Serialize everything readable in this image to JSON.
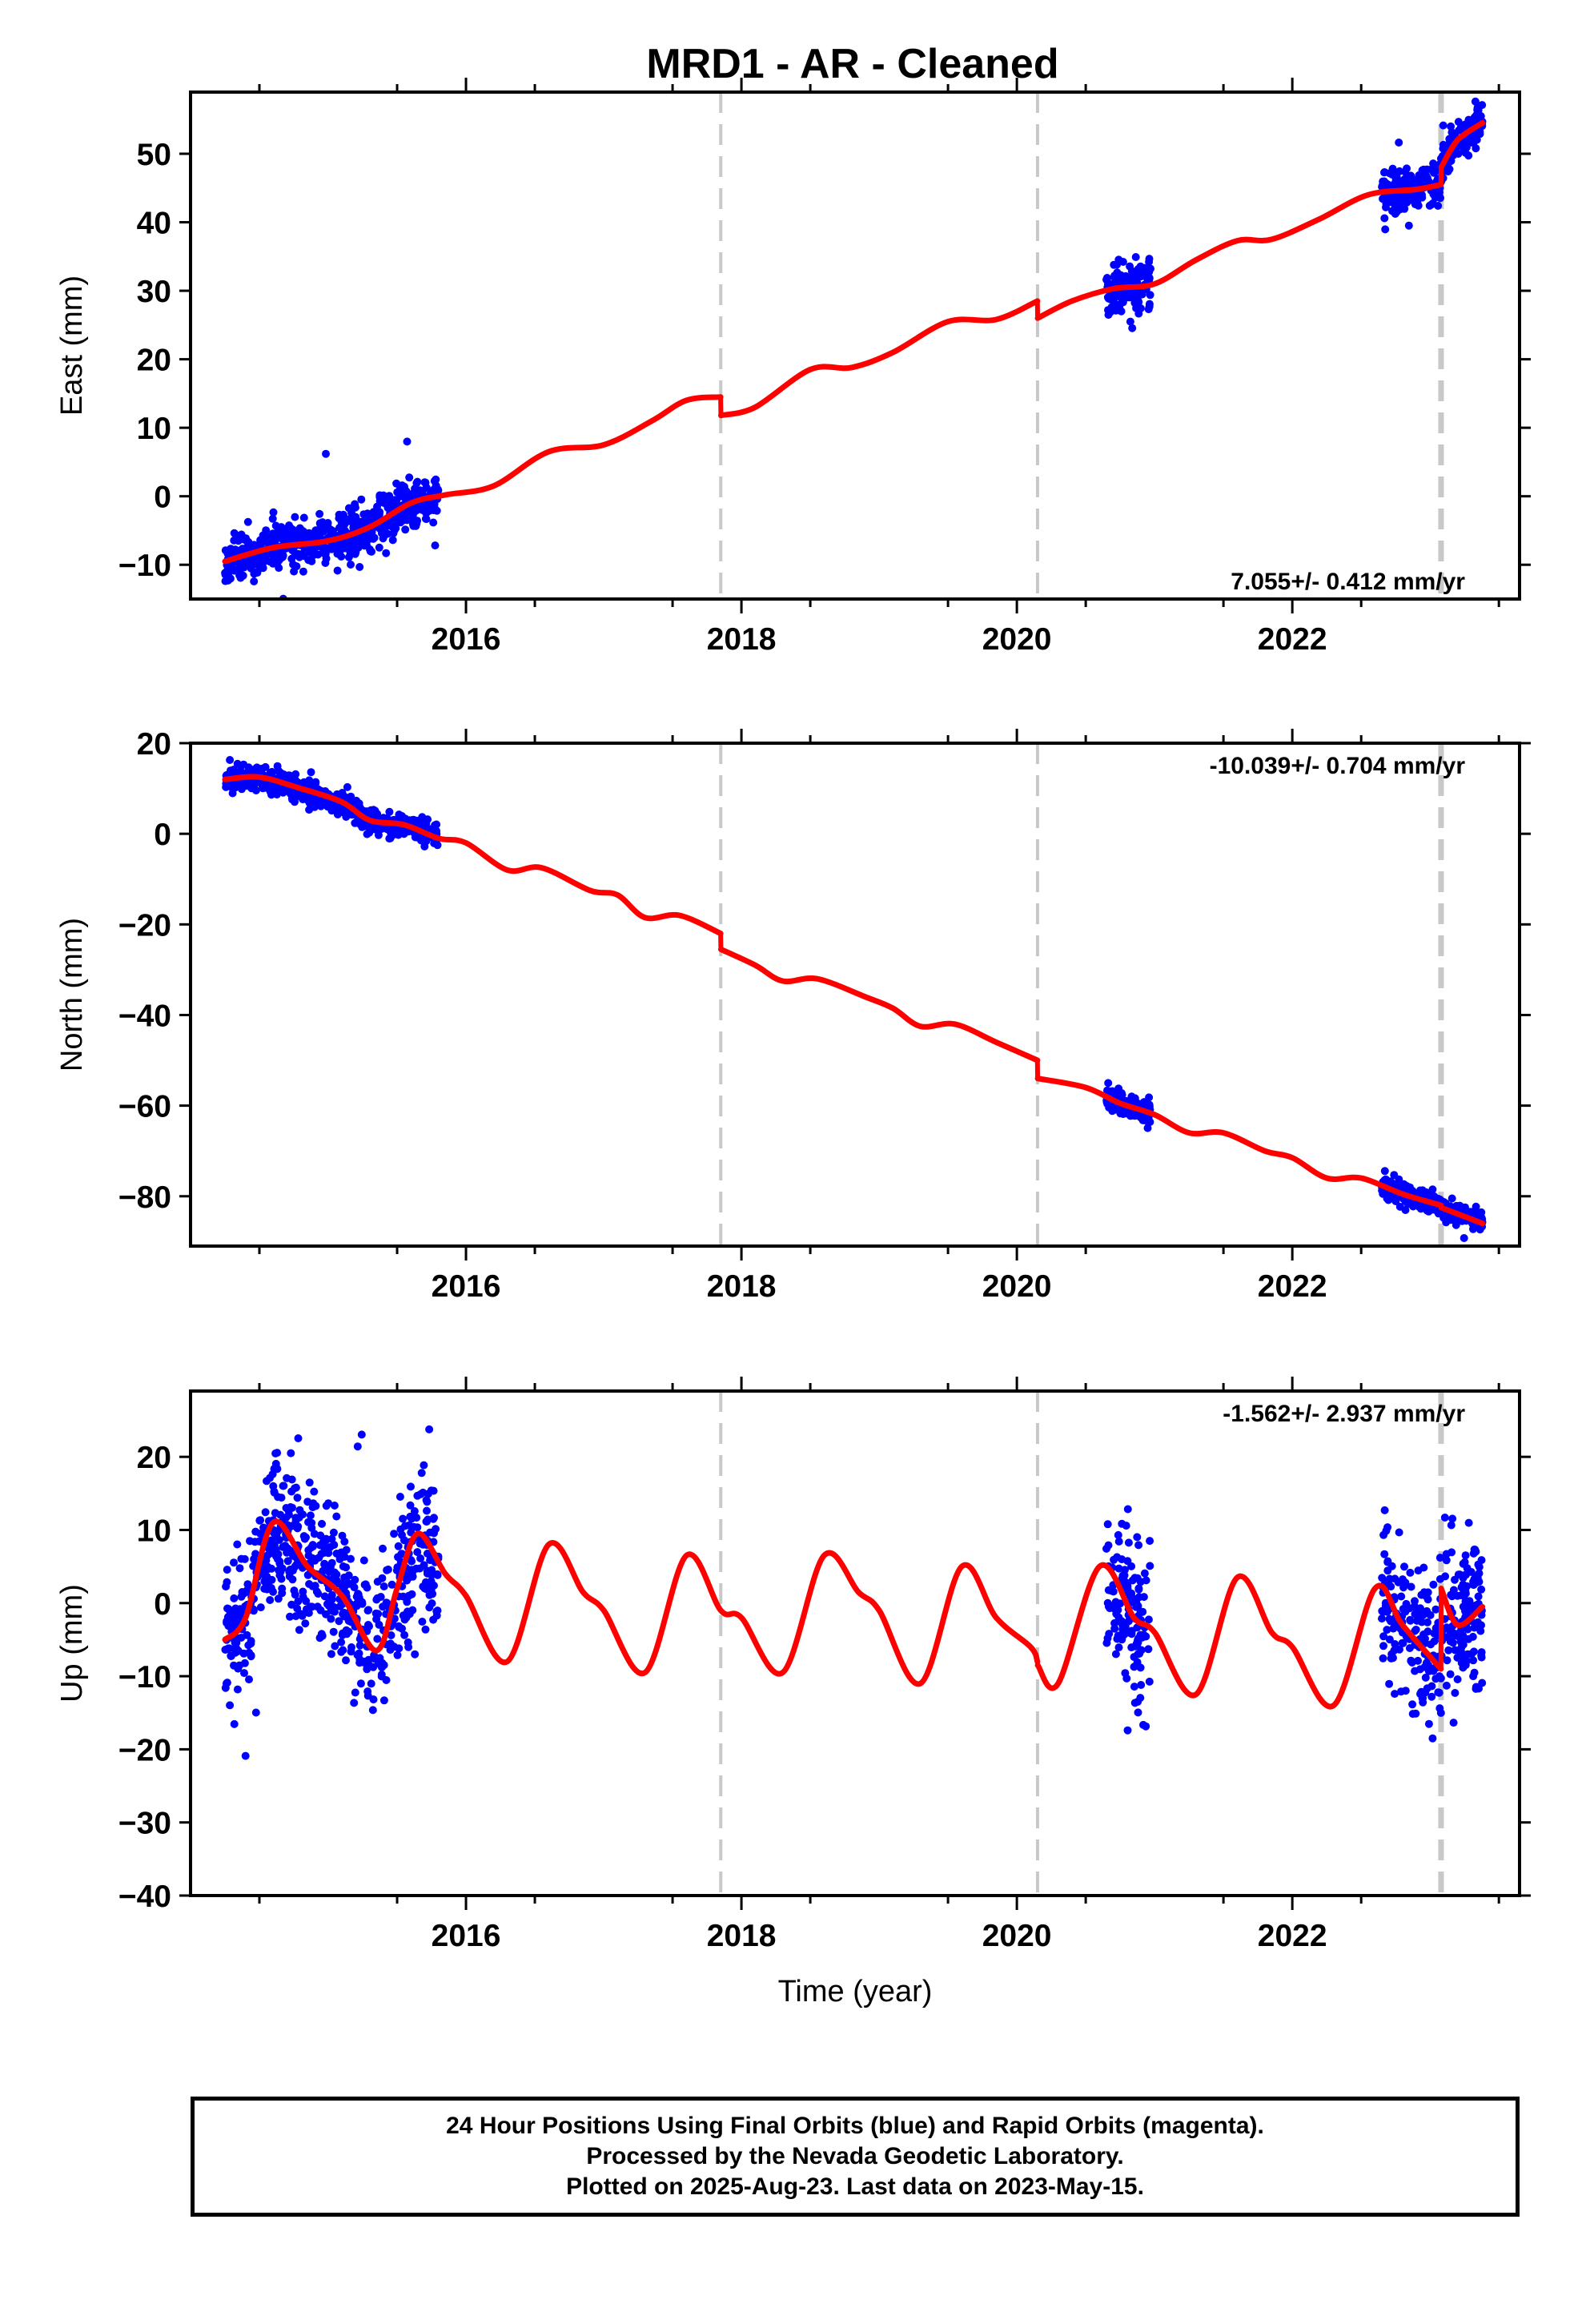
{
  "title": "MRD1  - AR - Cleaned",
  "colors": {
    "points": "#0000ff",
    "model": "#ff0000",
    "breaks": "#c8c8c8",
    "frame": "#000000"
  },
  "footer": {
    "line1": "24 Hour Positions Using Final Orbits (blue) and Rapid Orbits (magenta).",
    "line2": "Processed by the Nevada Geodetic Laboratory.",
    "line3": "Plotted on 2025-Aug-23. Last data on 2023-May-15."
  },
  "chart_data": [
    {
      "type": "scatter",
      "component": "East",
      "ylabel": "East (mm)",
      "xlabel": "",
      "xlim": [
        2014.0,
        2023.65
      ],
      "ylim": [
        -15,
        59
      ],
      "yticks": [
        -10,
        0,
        10,
        20,
        30,
        40,
        50
      ],
      "xticks": [
        2016,
        2018,
        2020,
        2022
      ],
      "rate_text": "7.055+/- 0.412 mm/yr",
      "rate_position": "bottom-right",
      "breaks": [
        2017.85,
        2020.15,
        2023.08
      ],
      "data_segments": [
        {
          "start": 2014.25,
          "end": 2015.8,
          "noise": 1.6
        },
        {
          "start": 2020.65,
          "end": 2020.97,
          "noise": 1.8
        },
        {
          "start": 2022.65,
          "end": 2023.38,
          "noise": 1.6
        }
      ],
      "model": {
        "anchors": [
          [
            2014.25,
            -9.5
          ],
          [
            2014.6,
            -7.5
          ],
          [
            2015.0,
            -6.5
          ],
          [
            2015.3,
            -4.5
          ],
          [
            2015.6,
            -1.0
          ],
          [
            2015.85,
            0.2
          ],
          [
            2016.2,
            1.5
          ],
          [
            2016.6,
            6.5
          ],
          [
            2017.0,
            7.5
          ],
          [
            2017.35,
            11.0
          ],
          [
            2017.6,
            14.0
          ],
          [
            2017.849,
            14.5
          ],
          [
            2017.851,
            11.8
          ],
          [
            2018.1,
            13.0
          ],
          [
            2018.5,
            18.5
          ],
          [
            2018.8,
            18.8
          ],
          [
            2019.1,
            21.0
          ],
          [
            2019.5,
            25.5
          ],
          [
            2019.85,
            25.8
          ],
          [
            2020.149,
            28.5
          ],
          [
            2020.151,
            26.0
          ],
          [
            2020.4,
            28.5
          ],
          [
            2020.7,
            30.3
          ],
          [
            2021.0,
            31.0
          ],
          [
            2021.3,
            34.5
          ],
          [
            2021.6,
            37.3
          ],
          [
            2021.85,
            37.5
          ],
          [
            2022.2,
            40.5
          ],
          [
            2022.55,
            44.0
          ],
          [
            2022.9,
            44.8
          ],
          [
            2023.079,
            45.5
          ],
          [
            2023.081,
            48.0
          ],
          [
            2023.2,
            52.0
          ],
          [
            2023.38,
            54.5
          ]
        ]
      }
    },
    {
      "type": "scatter",
      "component": "North",
      "ylabel": "North (mm)",
      "xlabel": "",
      "xlim": [
        2014.0,
        2023.65
      ],
      "ylim": [
        -91,
        20
      ],
      "yticks": [
        -80,
        -60,
        -40,
        -20,
        0,
        20
      ],
      "xticks": [
        2016,
        2018,
        2020,
        2022
      ],
      "rate_text": "-10.039+/- 0.704 mm/yr",
      "rate_position": "top-right",
      "breaks": [
        2017.85,
        2020.15,
        2023.08
      ],
      "data_segments": [
        {
          "start": 2014.25,
          "end": 2015.8,
          "noise": 1.3
        },
        {
          "start": 2020.65,
          "end": 2020.97,
          "noise": 1.3
        },
        {
          "start": 2022.65,
          "end": 2023.38,
          "noise": 1.2
        }
      ],
      "model": {
        "anchors": [
          [
            2014.25,
            12.0
          ],
          [
            2014.5,
            12.5
          ],
          [
            2014.8,
            10.0
          ],
          [
            2015.1,
            7.0
          ],
          [
            2015.3,
            3.0
          ],
          [
            2015.55,
            2.0
          ],
          [
            2015.8,
            -1.0
          ],
          [
            2016.0,
            -2.0
          ],
          [
            2016.3,
            -8.0
          ],
          [
            2016.55,
            -7.5
          ],
          [
            2016.9,
            -12.5
          ],
          [
            2017.1,
            -13.5
          ],
          [
            2017.3,
            -18.5
          ],
          [
            2017.55,
            -18.0
          ],
          [
            2017.849,
            -22.0
          ],
          [
            2017.851,
            -25.5
          ],
          [
            2018.1,
            -29.0
          ],
          [
            2018.3,
            -32.5
          ],
          [
            2018.55,
            -32.0
          ],
          [
            2018.9,
            -36.0
          ],
          [
            2019.1,
            -38.5
          ],
          [
            2019.3,
            -42.5
          ],
          [
            2019.55,
            -42.0
          ],
          [
            2019.85,
            -46.0
          ],
          [
            2020.149,
            -50.0
          ],
          [
            2020.151,
            -54.0
          ],
          [
            2020.5,
            -56.0
          ],
          [
            2020.75,
            -59.5
          ],
          [
            2021.0,
            -62.0
          ],
          [
            2021.25,
            -66.0
          ],
          [
            2021.5,
            -66.0
          ],
          [
            2021.8,
            -70.0
          ],
          [
            2022.0,
            -71.5
          ],
          [
            2022.25,
            -76.0
          ],
          [
            2022.5,
            -76.0
          ],
          [
            2022.8,
            -79.5
          ],
          [
            2023.079,
            -82.0
          ],
          [
            2023.081,
            -82.5
          ],
          [
            2023.38,
            -86.0
          ]
        ]
      }
    },
    {
      "type": "scatter",
      "component": "Up",
      "ylabel": "Up (mm)",
      "xlabel": "Time (year)",
      "xlim": [
        2014.0,
        2023.65
      ],
      "ylim": [
        -40,
        29
      ],
      "yticks": [
        -40,
        -30,
        -20,
        -10,
        0,
        10,
        20
      ],
      "xticks": [
        2016,
        2018,
        2020,
        2022
      ],
      "rate_text": "-1.562+/- 2.937 mm/yr",
      "rate_position": "top-right",
      "breaks": [
        2017.85,
        2020.15,
        2023.08
      ],
      "data_segments": [
        {
          "start": 2014.25,
          "end": 2015.8,
          "noise": 5.0
        },
        {
          "start": 2020.65,
          "end": 2020.97,
          "noise": 6.0
        },
        {
          "start": 2022.65,
          "end": 2023.38,
          "noise": 5.0
        }
      ],
      "model": {
        "anchors": [
          [
            2014.25,
            -5.0
          ],
          [
            2014.4,
            -2.0
          ],
          [
            2014.6,
            11.0
          ],
          [
            2014.85,
            5.0
          ],
          [
            2015.1,
            1.0
          ],
          [
            2015.35,
            -6.5
          ],
          [
            2015.5,
            2.0
          ],
          [
            2015.65,
            9.5
          ],
          [
            2015.85,
            4.0
          ],
          [
            2016.0,
            1.0
          ],
          [
            2016.3,
            -8.0
          ],
          [
            2016.6,
            8.0
          ],
          [
            2016.85,
            1.5
          ],
          [
            2017.0,
            -1.0
          ],
          [
            2017.3,
            -9.5
          ],
          [
            2017.6,
            6.5
          ],
          [
            2017.85,
            -1.0
          ],
          [
            2018.0,
            -2.0
          ],
          [
            2018.3,
            -9.5
          ],
          [
            2018.6,
            6.5
          ],
          [
            2018.85,
            1.5
          ],
          [
            2019.0,
            -1.0
          ],
          [
            2019.3,
            -11.0
          ],
          [
            2019.6,
            5.0
          ],
          [
            2019.85,
            -2.0
          ],
          [
            2020.1,
            -6.0
          ],
          [
            2020.149,
            -8.0
          ],
          [
            2020.151,
            -8.5
          ],
          [
            2020.3,
            -11.0
          ],
          [
            2020.6,
            5.0
          ],
          [
            2020.85,
            -2.0
          ],
          [
            2021.0,
            -4.0
          ],
          [
            2021.3,
            -12.5
          ],
          [
            2021.6,
            3.5
          ],
          [
            2021.85,
            -4.0
          ],
          [
            2022.0,
            -6.0
          ],
          [
            2022.3,
            -14.0
          ],
          [
            2022.6,
            2.0
          ],
          [
            2022.8,
            -3.0
          ],
          [
            2023.079,
            -9.0
          ],
          [
            2023.081,
            2.0
          ],
          [
            2023.2,
            -3.0
          ],
          [
            2023.38,
            -0.5
          ]
        ]
      }
    }
  ]
}
